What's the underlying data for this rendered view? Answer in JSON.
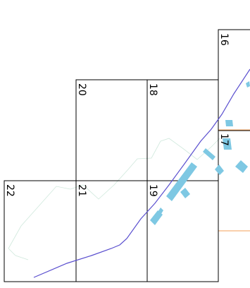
{
  "map": {
    "tiles": [
      {
        "label": "16",
        "highlighted": false
      },
      {
        "label": "17",
        "highlighted": true
      },
      {
        "label": "18",
        "highlighted": false
      },
      {
        "label": "19",
        "highlighted": false
      },
      {
        "label": "20",
        "highlighted": false
      },
      {
        "label": "21",
        "highlighted": false
      },
      {
        "label": "22",
        "highlighted": false
      }
    ],
    "colors": {
      "tile_border": "#000000",
      "highlight_border": "#f5a25a",
      "route_line": "#5a4fcf",
      "building_fill": "#7ec8e3",
      "faint_path": "#cfe8dc"
    }
  }
}
